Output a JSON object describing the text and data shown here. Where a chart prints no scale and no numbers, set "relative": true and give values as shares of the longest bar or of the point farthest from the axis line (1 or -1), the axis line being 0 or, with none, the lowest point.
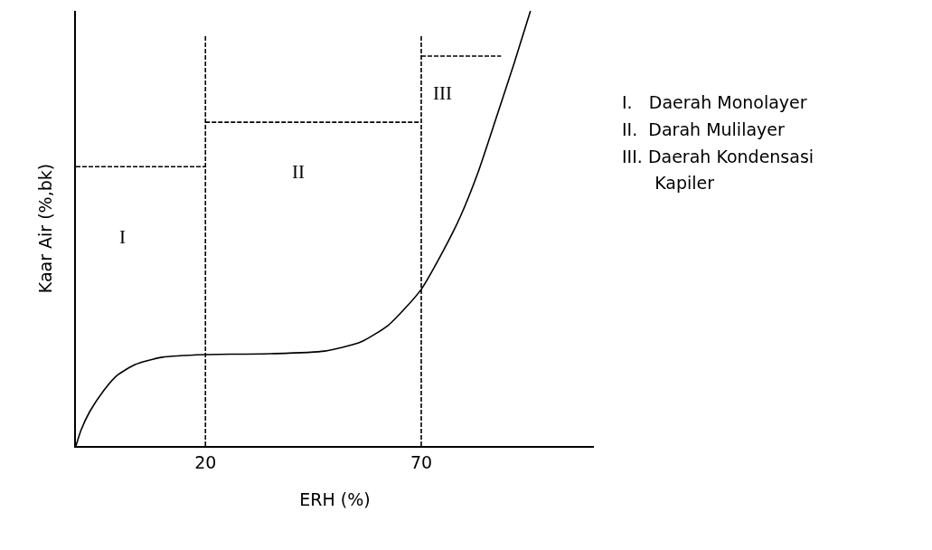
{
  "chart_data": {
    "type": "line",
    "relative": true,
    "xlabel": "ERH (%)",
    "ylabel": "Kaar Air (%,bk)",
    "xlim": [
      -10,
      110
    ],
    "xticks": [
      20,
      70
    ],
    "grid": false,
    "marker": "none",
    "series": [
      {
        "color": "#000000",
        "line_style": "solid",
        "x": [
          -10,
          -8.8,
          -6.8,
          -3.6,
          -0.5,
          3.7,
          10,
          20,
          35,
          47.6,
          56,
          62.3,
          66.4,
          70,
          74.8,
          79,
          83.2,
          87.4,
          91.5,
          95.3
        ],
        "values": [
          0,
          0.037,
          0.079,
          0.127,
          0.162,
          0.187,
          0.204,
          0.21,
          0.212,
          0.218,
          0.239,
          0.277,
          0.318,
          0.36,
          0.443,
          0.526,
          0.63,
          0.755,
          0.879,
          1
        ]
      },
      {
        "color": "#000000",
        "line_style": "dashed",
        "x": [
          20,
          20
        ],
        "values": [
          0,
          0.946
        ]
      },
      {
        "color": "#000000",
        "line_style": "dashed",
        "x": [
          70,
          70
        ],
        "values": [
          0,
          0.946
        ]
      },
      {
        "color": "#000000",
        "line_style": "dashed",
        "x": [
          -10,
          20
        ],
        "values": [
          0.642,
          0.642
        ]
      },
      {
        "color": "#000000",
        "line_style": "dashed",
        "x": [
          20,
          70
        ],
        "values": [
          0.744,
          0.744
        ]
      },
      {
        "color": "#000000",
        "line_style": "dashed",
        "x": [
          70,
          88.5
        ],
        "values": [
          0.896,
          0.896
        ]
      }
    ],
    "annotations": [
      "I",
      "II",
      "III",
      "I.   Daerah Monolayer",
      "II.  Darah Mulilayer",
      "III. Daerah Kondensasi",
      "      Kapiler"
    ]
  }
}
